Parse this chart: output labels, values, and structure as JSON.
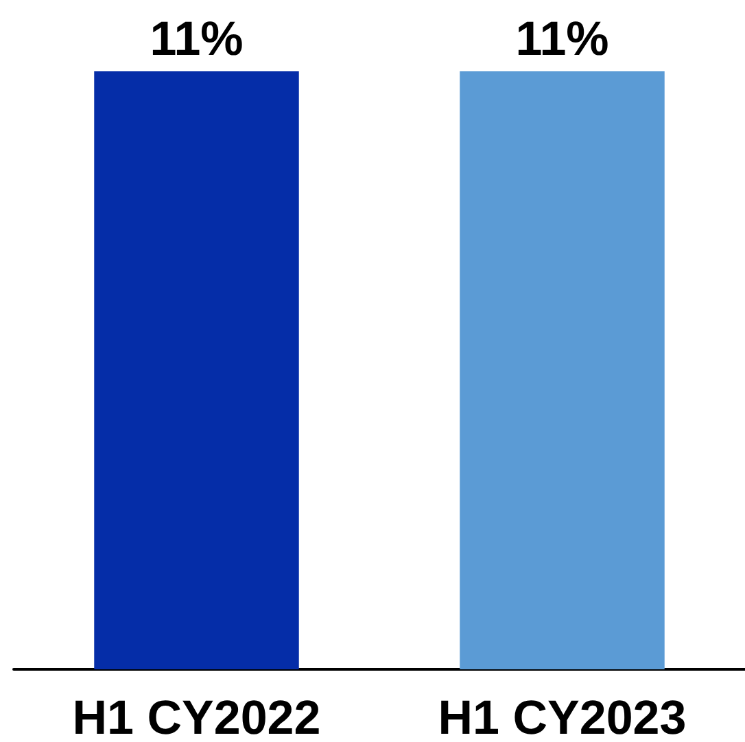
{
  "chart_data": {
    "type": "bar",
    "categories": [
      "H1 CY2022",
      "H1 CY2023"
    ],
    "values": [
      11,
      11
    ],
    "colors": [
      "#052da8",
      "#5b9bd5"
    ],
    "value_labels": [
      "11%",
      "11%"
    ]
  }
}
